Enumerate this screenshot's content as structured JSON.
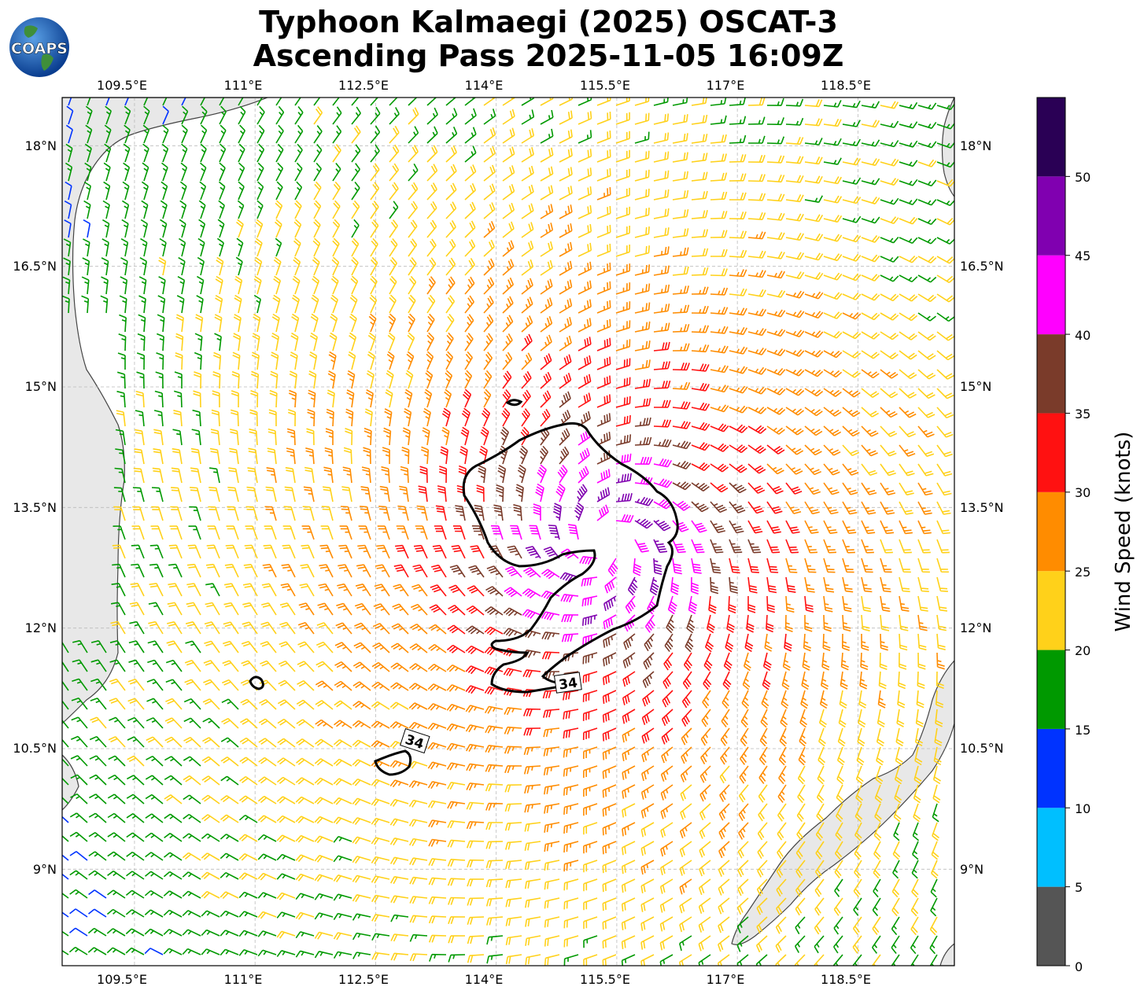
{
  "title_line1": "Typhoon Kalmaegi (2025) OSCAT-3",
  "title_line2": "Ascending Pass 2025-11-05 16:09Z",
  "logo_text": "COAPS",
  "map": {
    "lon_labels": [
      "109.5°E",
      "111°E",
      "112.5°E",
      "114°E",
      "115.5°E",
      "117°E",
      "118.5°E"
    ],
    "lat_labels": [
      "18°N",
      "16.5°N",
      "15°N",
      "13.5°N",
      "12°N",
      "10.5°N",
      "9°N"
    ],
    "contour_label": "34",
    "storm_center": {
      "lon": 115.35,
      "lat": 13.05
    },
    "lon_range": [
      108.6,
      119.7
    ],
    "lat_range": [
      7.8,
      18.6
    ]
  },
  "colorbar": {
    "label": "Wind Speed (knots)",
    "ticks": [
      "0",
      "5",
      "10",
      "15",
      "20",
      "25",
      "30",
      "35",
      "40",
      "45",
      "50"
    ],
    "bands": [
      {
        "from": 0,
        "to": 5,
        "color": "#555555"
      },
      {
        "from": 5,
        "to": 10,
        "color": "#00BFFF"
      },
      {
        "from": 10,
        "to": 15,
        "color": "#0033FF"
      },
      {
        "from": 15,
        "to": 20,
        "color": "#009900"
      },
      {
        "from": 20,
        "to": 25,
        "color": "#FFD11A"
      },
      {
        "from": 25,
        "to": 30,
        "color": "#FF8C00"
      },
      {
        "from": 30,
        "to": 35,
        "color": "#FF1111"
      },
      {
        "from": 35,
        "to": 40,
        "color": "#7A3B2A"
      },
      {
        "from": 40,
        "to": 45,
        "color": "#FF00FF"
      },
      {
        "from": 45,
        "to": 50,
        "color": "#8000B0"
      },
      {
        "from": 50,
        "to": 55,
        "color": "#2A0055"
      }
    ]
  }
}
